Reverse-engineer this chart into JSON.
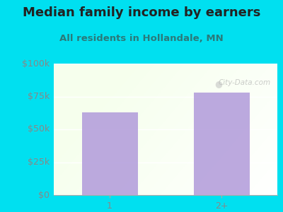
{
  "title": "Median family income by earners",
  "subtitle": "All residents in Hollandale, MN",
  "categories": [
    "1",
    "2+"
  ],
  "values": [
    63000,
    78000
  ],
  "bar_color": "#b39ddb",
  "background_outer": "#00e0f0",
  "background_inner_topleft": "#dff0e8",
  "background_inner_topright": "#f5fbf8",
  "background_inner_bottom": "#ffffff",
  "title_color": "#222222",
  "subtitle_color": "#2a7a7a",
  "tick_label_color": "#888888",
  "ylim": [
    0,
    100000
  ],
  "yticks": [
    0,
    25000,
    50000,
    75000,
    100000
  ],
  "ytick_labels": [
    "$0",
    "$25k",
    "$50k",
    "$75k",
    "$100k"
  ],
  "watermark": "City-Data.com",
  "title_fontsize": 13,
  "subtitle_fontsize": 9.5,
  "tick_fontsize": 9
}
